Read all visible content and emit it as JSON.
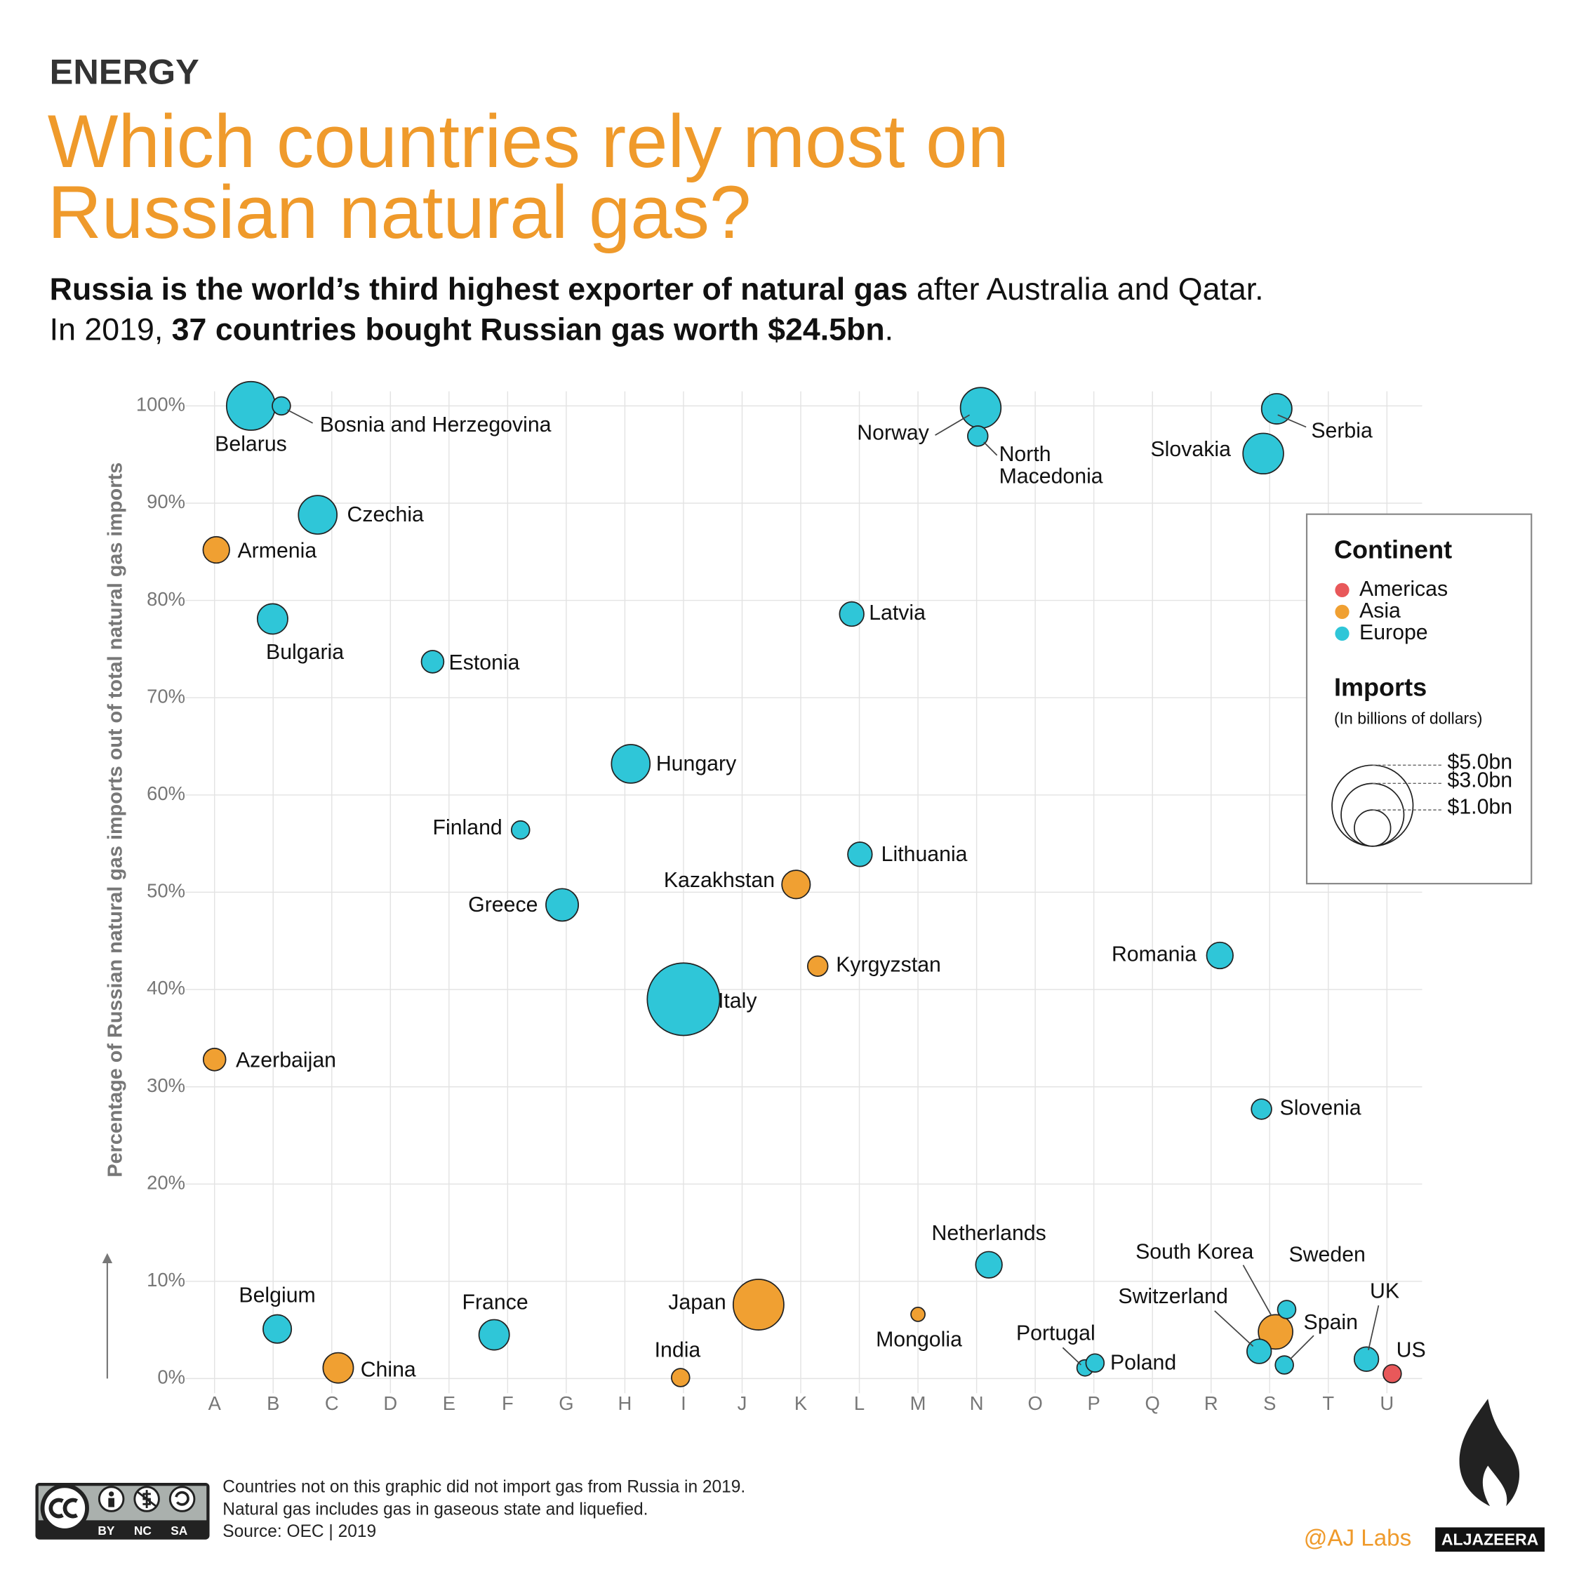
{
  "section": "ENERGY",
  "chart_data": {
    "type": "scatter",
    "title": "Which countries rely most on Russian natural gas?",
    "subtitle": [
      [
        {
          "text": "Russia is the world’s third highest exporter of natural gas",
          "bold": true
        },
        {
          "text": " after Australia and Qatar.",
          "bold": false
        }
      ],
      [
        {
          "text": "In 2019, ",
          "bold": false
        },
        {
          "text": "37 countries bought Russian gas worth $24.5bn",
          "bold": true
        },
        {
          "text": ".",
          "bold": false
        }
      ]
    ],
    "y_label": "Percentage of Russian natural gas imports out of total natural gas imports",
    "xlim": [
      -0.5,
      20.6
    ],
    "xticks": [
      {
        "value": 0,
        "label": "A"
      },
      {
        "value": 1,
        "label": "B"
      },
      {
        "value": 2,
        "label": "C"
      },
      {
        "value": 3,
        "label": "D"
      },
      {
        "value": 4,
        "label": "E"
      },
      {
        "value": 5,
        "label": "F"
      },
      {
        "value": 6,
        "label": "G"
      },
      {
        "value": 7,
        "label": "H"
      },
      {
        "value": 8,
        "label": "I"
      },
      {
        "value": 9,
        "label": "J"
      },
      {
        "value": 10,
        "label": "K"
      },
      {
        "value": 11,
        "label": "L"
      },
      {
        "value": 12,
        "label": "M"
      },
      {
        "value": 13,
        "label": "N"
      },
      {
        "value": 14,
        "label": "O"
      },
      {
        "value": 15,
        "label": "P"
      },
      {
        "value": 16,
        "label": "Q"
      },
      {
        "value": 17,
        "label": "R"
      },
      {
        "value": 18,
        "label": "S"
      },
      {
        "value": 19,
        "label": "T"
      },
      {
        "value": 20,
        "label": "U"
      }
    ],
    "ylim": [
      -1.5,
      101.5
    ],
    "yticks": [
      {
        "value": 0,
        "label": "0%"
      },
      {
        "value": 10,
        "label": "10%"
      },
      {
        "value": 20,
        "label": "20%"
      },
      {
        "value": 30,
        "label": "30%"
      },
      {
        "value": 40,
        "label": "40%"
      },
      {
        "value": 50,
        "label": "50%"
      },
      {
        "value": 60,
        "label": "60%"
      },
      {
        "value": 70,
        "label": "70%"
      },
      {
        "value": 80,
        "label": "80%"
      },
      {
        "value": 90,
        "label": "90%"
      },
      {
        "value": 100,
        "label": "100%"
      }
    ],
    "grid": true,
    "legend_title": "Continent",
    "series": [
      {
        "name": "Americas",
        "color": "#e8585a",
        "labels": [
          "US"
        ],
        "x": [
          20.09
        ],
        "values": [
          0.5
        ],
        "sizes": [
          0.25
        ]
      },
      {
        "name": "Asia",
        "color": "#f0a032",
        "labels": [
          "Armenia",
          "Kazakhstan",
          "Kyrgyzstan",
          "Azerbaijan",
          "Japan",
          "Mongolia",
          "China",
          "India",
          "South Korea"
        ],
        "x": [
          0.03,
          9.92,
          10.29,
          0,
          9.28,
          12.0,
          2.11,
          7.95,
          18.1
        ],
        "values": [
          85.2,
          50.8,
          42.4,
          32.8,
          7.6,
          6.6,
          1.1,
          0.1,
          4.8
        ],
        "sizes": [
          0.53,
          0.61,
          0.31,
          0.38,
          1.95,
          0.15,
          0.7,
          0.25,
          0.9
        ]
      },
      {
        "name": "Europe",
        "color": "#2fc6d8",
        "labels": [
          "Belarus",
          "Bosnia and Herzegovina",
          "Norway",
          "North Macedonia",
          "Serbia",
          "Slovakia",
          "Czechia",
          "Bulgaria",
          "Latvia",
          "Estonia",
          "Hungary",
          "Finland",
          "Lithuania",
          "Greece",
          "Romania",
          "Italy",
          "Slovenia",
          "Netherlands",
          "Belgium",
          "France",
          "Portugal",
          "Poland",
          "Sweden",
          "Switzerland",
          "Spain",
          "UK"
        ],
        "x": [
          0.62,
          1.14,
          13.07,
          13.02,
          18.12,
          17.89,
          1.76,
          0.99,
          10.87,
          3.72,
          7.1,
          5.22,
          11.01,
          5.93,
          17.15,
          8.0,
          17.86,
          13.21,
          1.07,
          4.77,
          14.85,
          15.02,
          18.29,
          17.82,
          18.25,
          19.65
        ],
        "values": [
          100,
          100,
          99.8,
          96.9,
          99.7,
          95.1,
          88.8,
          78.1,
          78.6,
          73.7,
          63.2,
          56.4,
          53.9,
          48.7,
          43.5,
          39.0,
          27.7,
          11.7,
          5.1,
          4.5,
          1.1,
          1.6,
          7.1,
          2.8,
          1.4,
          2.0
        ],
        "sizes": [
          1.8,
          0.25,
          1.25,
          0.31,
          0.7,
          1.25,
          1.13,
          0.7,
          0.45,
          0.38,
          1.13,
          0.25,
          0.45,
          0.8,
          0.53,
          4.0,
          0.31,
          0.53,
          0.61,
          0.7,
          0.2,
          0.25,
          0.25,
          0.45,
          0.25,
          0.45
        ]
      }
    ],
    "size_title": "Imports",
    "size_subtitle": "(In billions of dollars)",
    "size_legend": [
      {
        "value": 5,
        "label": "$5.0bn"
      },
      {
        "value": 3,
        "label": "$3.0bn"
      },
      {
        "value": 1,
        "label": "$1.0bn"
      }
    ]
  },
  "footer": {
    "notes": [
      "Countries not on this graphic did not import gas from Russia in 2019.",
      "Natural gas includes gas in gaseous state and liquefied.",
      "Source: OEC | 2019"
    ],
    "credit": "@AJ Labs",
    "brand": "ALJAZEERA",
    "license": [
      "BY",
      "NC",
      "SA"
    ]
  }
}
